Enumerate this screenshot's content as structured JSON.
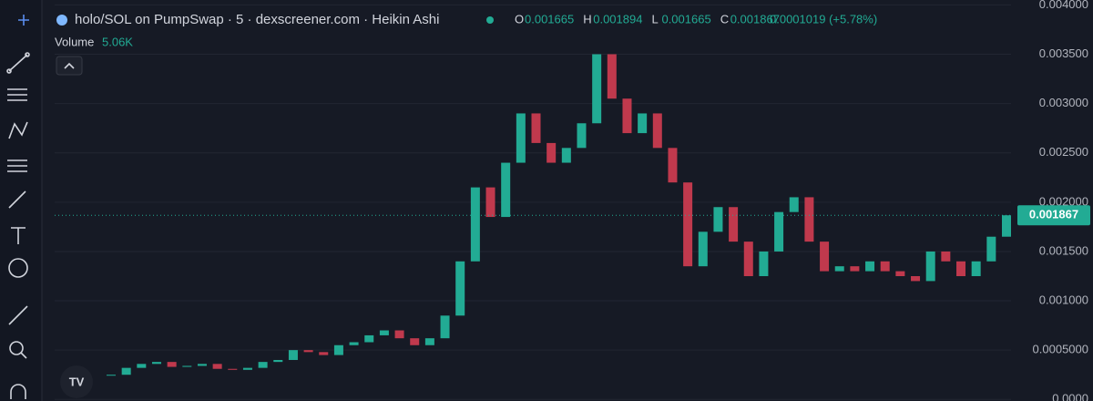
{
  "header": {
    "title": "holo/SOL on PumpSwap · 5 · dexscreener.com · Heikin Ashi",
    "ohlc": [
      {
        "key": "O",
        "value": "0.001665"
      },
      {
        "key": "H",
        "value": "0.001894"
      },
      {
        "key": "L",
        "value": "0.001665"
      },
      {
        "key": "C",
        "value": "0.001867"
      }
    ],
    "change": "0.0001019 (+5.78%)",
    "volume_label": "Volume",
    "volume_value": "5.06K"
  },
  "chart_data": {
    "type": "candlestick",
    "values": [
      0.00025,
      0.00032,
      0.00036,
      0.00038,
      0.00033,
      0.00034,
      0.00036,
      0.00031,
      0.0003,
      0.00032,
      0.00038,
      0.0004,
      0.0005,
      0.00048,
      0.00045,
      0.00055,
      0.00058,
      0.00065,
      0.0007,
      0.00062,
      0.00055,
      0.00062,
      0.00085,
      0.0014,
      0.00215,
      0.00185,
      0.0024,
      0.0029,
      0.0026,
      0.0024,
      0.00255,
      0.0028,
      0.0035,
      0.00305,
      0.0027,
      0.0029,
      0.00255,
      0.0022,
      0.00135,
      0.0017,
      0.00195,
      0.0016,
      0.00125,
      0.0015,
      0.0019,
      0.00205,
      0.0016,
      0.0013,
      0.00135,
      0.0013,
      0.0014,
      0.0013,
      0.00125,
      0.0012,
      0.0015,
      0.0014,
      0.00125,
      0.0014,
      0.00165,
      0.001867
    ],
    "up_color": "#22ab94",
    "down_color": "#c0394d",
    "ylim": [
      -1.6e-05,
      0.00405
    ],
    "yticks": [
      {
        "value": 0.004,
        "label": "0.004000"
      },
      {
        "value": 0.0035,
        "label": "0.003500"
      },
      {
        "value": 0.003,
        "label": "0.003000"
      },
      {
        "value": 0.0025,
        "label": "0.002500"
      },
      {
        "value": 0.002,
        "label": "0.002000"
      },
      {
        "value": 0.0015,
        "label": "0.001500"
      },
      {
        "value": 0.001,
        "label": "0.001000"
      },
      {
        "value": 0.0005,
        "label": "0.0005000"
      },
      {
        "value": 0,
        "label": "0.0000"
      }
    ],
    "last_price": 0.001867,
    "grid": true
  }
}
